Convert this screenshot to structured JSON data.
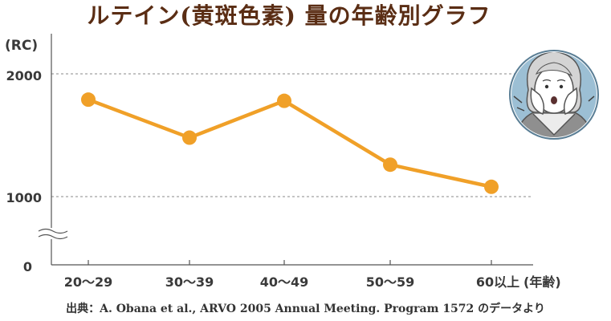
{
  "title": "ルテイン(黄斑色素) 量の年齢別グラフ",
  "source": "出典：A. Obana et al., ARVO 2005 Annual Meeting. Program 1572 のデータより",
  "colors": {
    "line": "#f0a028",
    "axis": "#555555",
    "title": "#5a2d14",
    "grid": "#888888"
  },
  "illustration": "worried-woman-portrait",
  "chart_data": {
    "type": "line",
    "ylabel": "(RC)",
    "xlabel": "(年齢)",
    "y_ticks": [
      "0",
      "1000",
      "2000"
    ],
    "ylim": [
      0,
      2000
    ],
    "y_axis_break": true,
    "categories": [
      "20〜29",
      "30〜39",
      "40〜49",
      "50〜59",
      "60以上"
    ],
    "values": [
      1790,
      1480,
      1780,
      1260,
      1080
    ],
    "grid": "horizontal dashed at 1000 and 2000"
  }
}
